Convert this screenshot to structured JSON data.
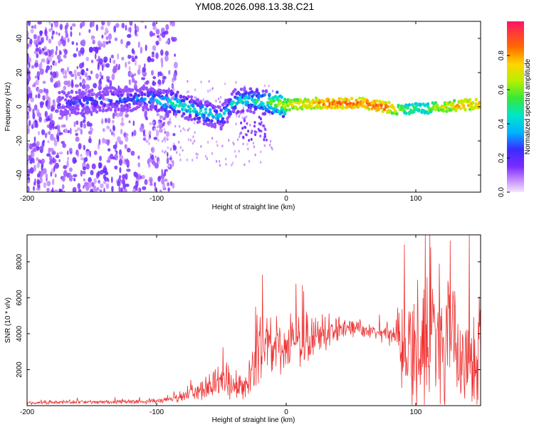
{
  "title": "YM08.2026.098.13.38.C21",
  "chart_data": [
    {
      "type": "heatmap",
      "xlabel": "Height of straight line (km)",
      "ylabel": "Frequency (Hz)",
      "xlim": [
        -200,
        150
      ],
      "ylim": [
        -50,
        50
      ],
      "xticks": [
        -200,
        -100,
        0,
        100
      ],
      "yticks": [
        -40,
        -20,
        0,
        20,
        40
      ],
      "colorbar": {
        "label": "Normalized spectral amplitude",
        "range": [
          0,
          1
        ],
        "ticks": [
          "0.0",
          "0.2",
          "0.4",
          "0.6",
          "0.8"
        ]
      },
      "ridge": [
        {
          "x": -170,
          "f": 2,
          "amp": 0.25
        },
        {
          "x": -140,
          "f": 4,
          "amp": 0.3
        },
        {
          "x": -110,
          "f": 5,
          "amp": 0.35
        },
        {
          "x": -95,
          "f": 3,
          "amp": 0.45
        },
        {
          "x": -85,
          "f": 2,
          "amp": 0.5
        },
        {
          "x": -70,
          "f": -2,
          "amp": 0.45
        },
        {
          "x": -60,
          "f": -4,
          "amp": 0.45
        },
        {
          "x": -50,
          "f": -6,
          "amp": 0.4
        },
        {
          "x": -40,
          "f": 3,
          "amp": 0.45
        },
        {
          "x": -30,
          "f": 4,
          "amp": 0.45
        },
        {
          "x": -20,
          "f": 3,
          "amp": 0.5
        },
        {
          "x": -10,
          "f": 2,
          "amp": 0.6
        },
        {
          "x": 0,
          "f": 1,
          "amp": 0.7
        },
        {
          "x": 20,
          "f": 2,
          "amp": 0.8
        },
        {
          "x": 40,
          "f": 2,
          "amp": 0.9
        },
        {
          "x": 60,
          "f": 2,
          "amp": 0.85
        },
        {
          "x": 75,
          "f": 0,
          "amp": 0.9
        },
        {
          "x": 90,
          "f": -2,
          "amp": 0.6
        },
        {
          "x": 100,
          "f": -1,
          "amp": 0.55
        },
        {
          "x": 110,
          "f": -1,
          "amp": 0.6
        },
        {
          "x": 120,
          "f": 0,
          "amp": 0.7
        },
        {
          "x": 135,
          "f": 1,
          "amp": 0.8
        },
        {
          "x": 150,
          "f": 2,
          "amp": 0.8
        }
      ]
    },
    {
      "type": "line",
      "xlabel": "Height of straight line (km)",
      "ylabel": "SNR (10 * v/v)",
      "xlim": [
        -200,
        150
      ],
      "ylim": [
        0,
        9500
      ],
      "xticks": [
        -200,
        -100,
        0,
        100
      ],
      "yticks": [
        2000,
        4000,
        6000,
        8000
      ],
      "color": "#ee3333",
      "series": [
        {
          "name": "SNR",
          "x": [
            -200,
            -180,
            -160,
            -140,
            -120,
            -100,
            -90,
            -80,
            -70,
            -60,
            -50,
            -40,
            -30,
            -25,
            -20,
            -15,
            -10,
            0,
            10,
            20,
            30,
            40,
            50,
            60,
            70,
            80,
            85,
            90,
            100,
            110,
            120,
            130,
            140,
            145,
            150
          ],
          "values": [
            150,
            180,
            200,
            180,
            220,
            250,
            300,
            500,
            800,
            1100,
            1500,
            1200,
            1000,
            2500,
            3000,
            3200,
            3000,
            3300,
            3500,
            3800,
            4000,
            4200,
            4300,
            4200,
            4100,
            4000,
            4000,
            2500,
            3000,
            3500,
            3000,
            3300,
            2500,
            2000,
            3500
          ],
          "spread": [
            80,
            90,
            100,
            90,
            110,
            120,
            150,
            300,
            500,
            700,
            1000,
            800,
            700,
            1500,
            1800,
            1800,
            1700,
            1600,
            1400,
            1200,
            800,
            500,
            400,
            400,
            400,
            500,
            800,
            2500,
            3500,
            3500,
            3200,
            2800,
            2800,
            2500,
            2500
          ]
        }
      ]
    }
  ]
}
